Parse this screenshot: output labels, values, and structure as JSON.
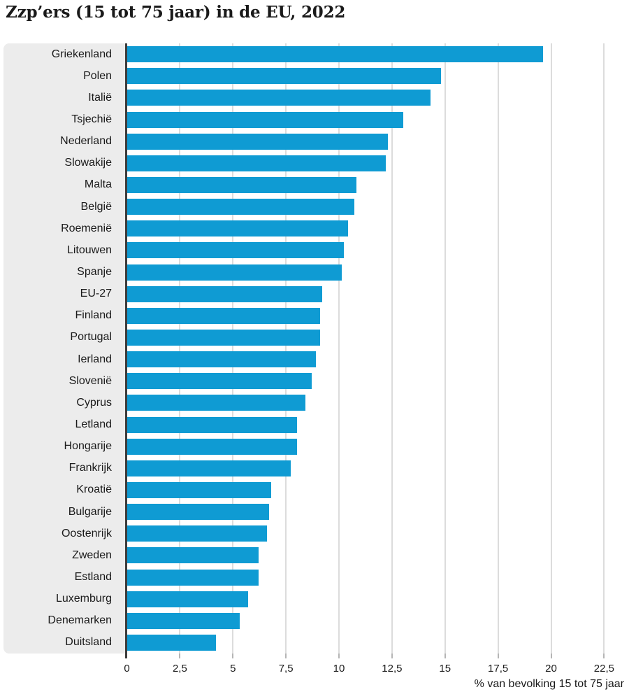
{
  "chart_data": {
    "type": "bar",
    "orientation": "horizontal",
    "title": "Zzp’ers (15 tot 75 jaar) in de EU, 2022",
    "xlabel": "% van bevolking 15 tot 75 jaar",
    "ylabel": "",
    "categories": [
      "Griekenland",
      "Polen",
      "Italië",
      "Tsjechië",
      "Nederland",
      "Slowakije",
      "Malta",
      "België",
      "Roemenië",
      "Litouwen",
      "Spanje",
      "EU-27",
      "Finland",
      "Portugal",
      "Ierland",
      "Slovenië",
      "Cyprus",
      "Letland",
      "Hongarije",
      "Frankrijk",
      "Kroatië",
      "Bulgarije",
      "Oostenrijk",
      "Zweden",
      "Estland",
      "Luxemburg",
      "Denemarken",
      "Duitsland"
    ],
    "values": [
      19.6,
      14.8,
      14.3,
      13.0,
      12.3,
      12.2,
      10.8,
      10.7,
      10.4,
      10.2,
      10.1,
      9.2,
      9.1,
      9.1,
      8.9,
      8.7,
      8.4,
      8.0,
      8.0,
      7.7,
      6.8,
      6.7,
      6.6,
      6.2,
      6.2,
      5.7,
      5.3,
      4.2
    ],
    "xlim": [
      0,
      23.5
    ],
    "x_ticks": [
      0,
      2.5,
      5,
      7.5,
      10,
      12.5,
      15,
      17.5,
      20,
      22.5
    ],
    "x_tick_labels": [
      "0",
      "2,5",
      "5",
      "7,5",
      "10",
      "12,5",
      "15",
      "17,5",
      "20",
      "22,5"
    ],
    "grid": "vertical-gridlines",
    "legend": "none",
    "colors": {
      "bar": "#0f9bd3",
      "label_panel": "#ececec",
      "axis_line": "#3d3d3d",
      "gridline": "#dcdcdc",
      "text": "#1a1a1a"
    }
  }
}
